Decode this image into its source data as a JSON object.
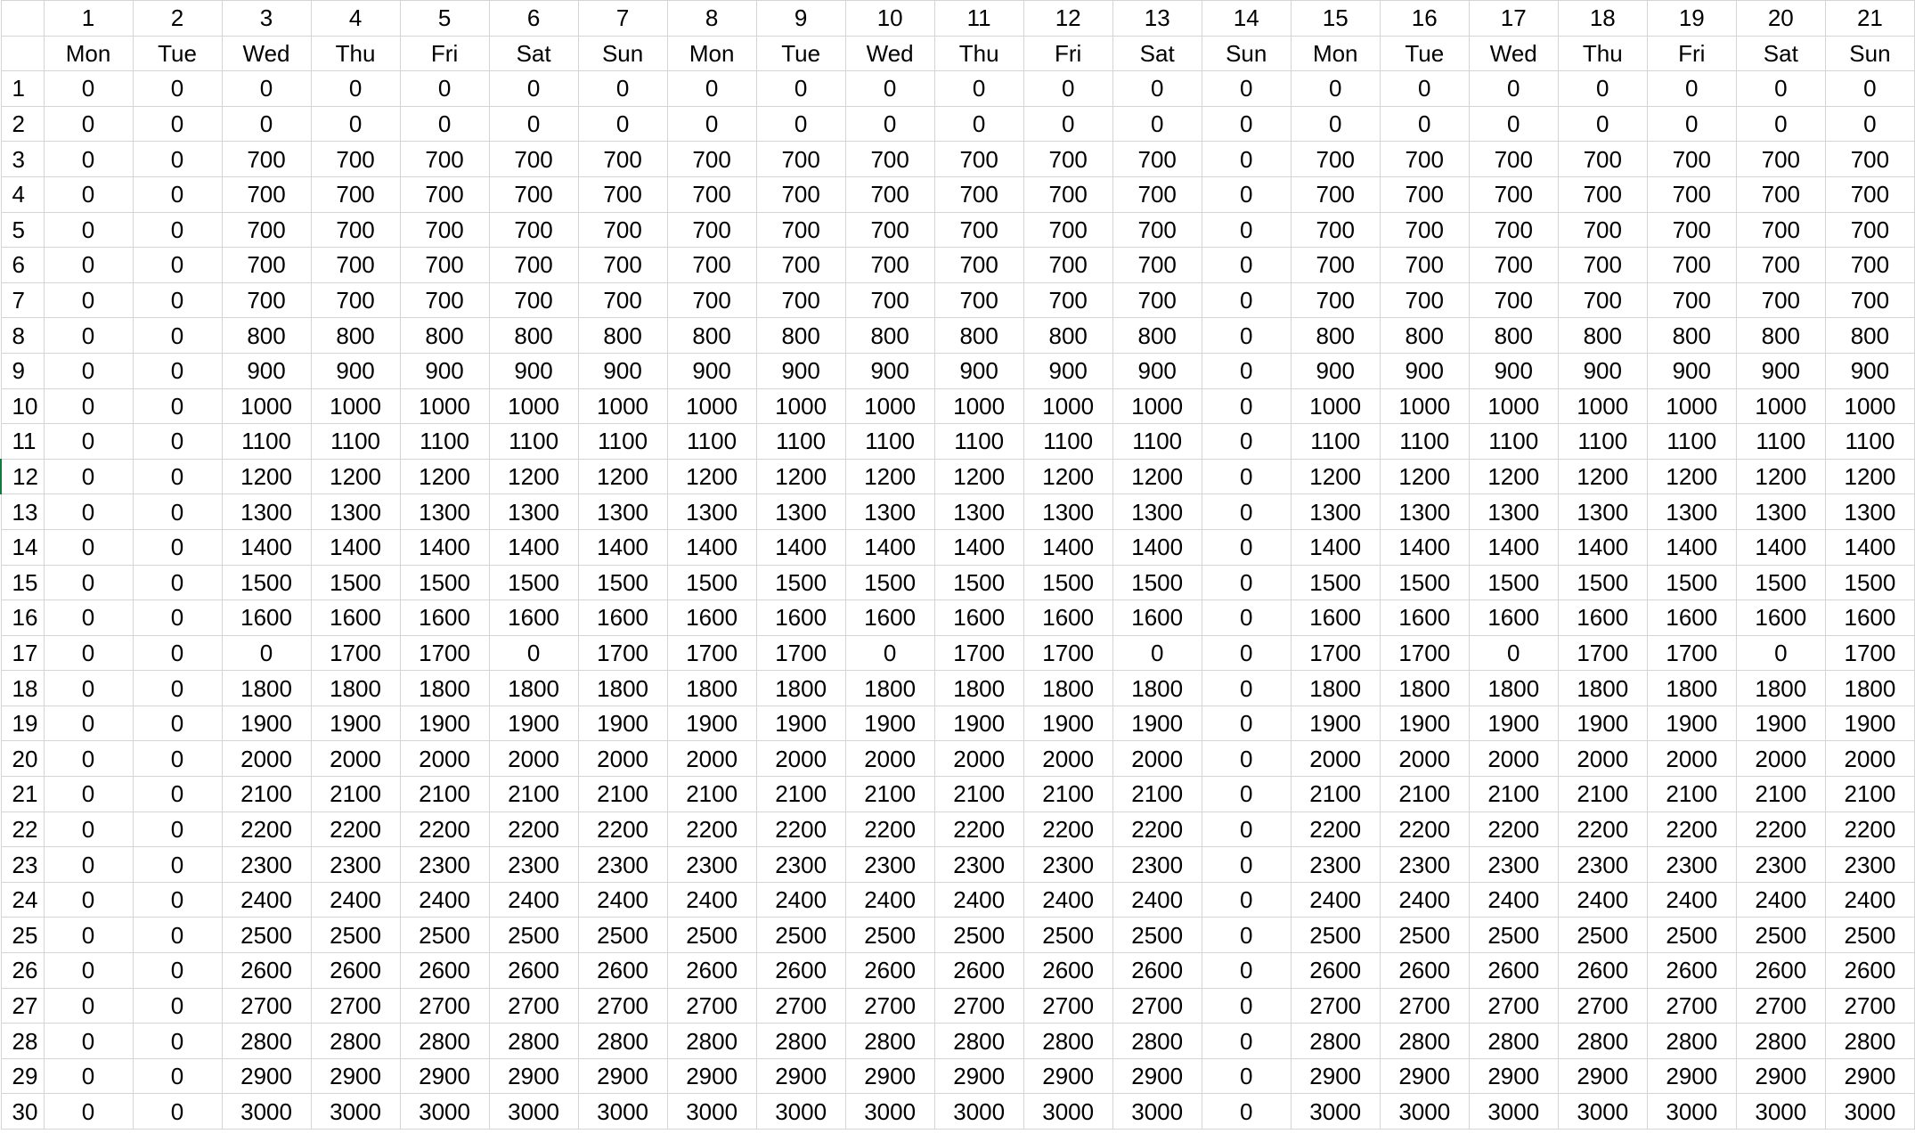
{
  "sheet": {
    "day_numbers": [
      "1",
      "2",
      "3",
      "4",
      "5",
      "6",
      "7",
      "8",
      "9",
      "10",
      "11",
      "12",
      "13",
      "14",
      "15",
      "16",
      "17",
      "18",
      "19",
      "20",
      "21"
    ],
    "weekdays": [
      "Mon",
      "Tue",
      "Wed",
      "Thu",
      "Fri",
      "Sat",
      "Sun",
      "Mon",
      "Tue",
      "Wed",
      "Thu",
      "Fri",
      "Sat",
      "Sun",
      "Mon",
      "Tue",
      "Wed",
      "Thu",
      "Fri",
      "Sat",
      "Sun"
    ],
    "rows": [
      {
        "label": "1",
        "values": [
          "0",
          "0",
          "0",
          "0",
          "0",
          "0",
          "0",
          "0",
          "0",
          "0",
          "0",
          "0",
          "0",
          "0",
          "0",
          "0",
          "0",
          "0",
          "0",
          "0",
          "0"
        ]
      },
      {
        "label": "2",
        "values": [
          "0",
          "0",
          "0",
          "0",
          "0",
          "0",
          "0",
          "0",
          "0",
          "0",
          "0",
          "0",
          "0",
          "0",
          "0",
          "0",
          "0",
          "0",
          "0",
          "0",
          "0"
        ]
      },
      {
        "label": "3",
        "values": [
          "0",
          "0",
          "700",
          "700",
          "700",
          "700",
          "700",
          "700",
          "700",
          "700",
          "700",
          "700",
          "700",
          "0",
          "700",
          "700",
          "700",
          "700",
          "700",
          "700",
          "700"
        ]
      },
      {
        "label": "4",
        "values": [
          "0",
          "0",
          "700",
          "700",
          "700",
          "700",
          "700",
          "700",
          "700",
          "700",
          "700",
          "700",
          "700",
          "0",
          "700",
          "700",
          "700",
          "700",
          "700",
          "700",
          "700"
        ]
      },
      {
        "label": "5",
        "values": [
          "0",
          "0",
          "700",
          "700",
          "700",
          "700",
          "700",
          "700",
          "700",
          "700",
          "700",
          "700",
          "700",
          "0",
          "700",
          "700",
          "700",
          "700",
          "700",
          "700",
          "700"
        ]
      },
      {
        "label": "6",
        "values": [
          "0",
          "0",
          "700",
          "700",
          "700",
          "700",
          "700",
          "700",
          "700",
          "700",
          "700",
          "700",
          "700",
          "0",
          "700",
          "700",
          "700",
          "700",
          "700",
          "700",
          "700"
        ]
      },
      {
        "label": "7",
        "values": [
          "0",
          "0",
          "700",
          "700",
          "700",
          "700",
          "700",
          "700",
          "700",
          "700",
          "700",
          "700",
          "700",
          "0",
          "700",
          "700",
          "700",
          "700",
          "700",
          "700",
          "700"
        ]
      },
      {
        "label": "8",
        "values": [
          "0",
          "0",
          "800",
          "800",
          "800",
          "800",
          "800",
          "800",
          "800",
          "800",
          "800",
          "800",
          "800",
          "0",
          "800",
          "800",
          "800",
          "800",
          "800",
          "800",
          "800"
        ]
      },
      {
        "label": "9",
        "values": [
          "0",
          "0",
          "900",
          "900",
          "900",
          "900",
          "900",
          "900",
          "900",
          "900",
          "900",
          "900",
          "900",
          "0",
          "900",
          "900",
          "900",
          "900",
          "900",
          "900",
          "900"
        ]
      },
      {
        "label": "10",
        "values": [
          "0",
          "0",
          "1000",
          "1000",
          "1000",
          "1000",
          "1000",
          "1000",
          "1000",
          "1000",
          "1000",
          "1000",
          "1000",
          "0",
          "1000",
          "1000",
          "1000",
          "1000",
          "1000",
          "1000",
          "1000"
        ]
      },
      {
        "label": "11",
        "values": [
          "0",
          "0",
          "1100",
          "1100",
          "1100",
          "1100",
          "1100",
          "1100",
          "1100",
          "1100",
          "1100",
          "1100",
          "1100",
          "0",
          "1100",
          "1100",
          "1100",
          "1100",
          "1100",
          "1100",
          "1100"
        ]
      },
      {
        "label": "12",
        "values": [
          "0",
          "0",
          "1200",
          "1200",
          "1200",
          "1200",
          "1200",
          "1200",
          "1200",
          "1200",
          "1200",
          "1200",
          "1200",
          "0",
          "1200",
          "1200",
          "1200",
          "1200",
          "1200",
          "1200",
          "1200"
        ]
      },
      {
        "label": "13",
        "values": [
          "0",
          "0",
          "1300",
          "1300",
          "1300",
          "1300",
          "1300",
          "1300",
          "1300",
          "1300",
          "1300",
          "1300",
          "1300",
          "0",
          "1300",
          "1300",
          "1300",
          "1300",
          "1300",
          "1300",
          "1300"
        ]
      },
      {
        "label": "14",
        "values": [
          "0",
          "0",
          "1400",
          "1400",
          "1400",
          "1400",
          "1400",
          "1400",
          "1400",
          "1400",
          "1400",
          "1400",
          "1400",
          "0",
          "1400",
          "1400",
          "1400",
          "1400",
          "1400",
          "1400",
          "1400"
        ]
      },
      {
        "label": "15",
        "values": [
          "0",
          "0",
          "1500",
          "1500",
          "1500",
          "1500",
          "1500",
          "1500",
          "1500",
          "1500",
          "1500",
          "1500",
          "1500",
          "0",
          "1500",
          "1500",
          "1500",
          "1500",
          "1500",
          "1500",
          "1500"
        ]
      },
      {
        "label": "16",
        "values": [
          "0",
          "0",
          "1600",
          "1600",
          "1600",
          "1600",
          "1600",
          "1600",
          "1600",
          "1600",
          "1600",
          "1600",
          "1600",
          "0",
          "1600",
          "1600",
          "1600",
          "1600",
          "1600",
          "1600",
          "1600"
        ]
      },
      {
        "label": "17",
        "values": [
          "0",
          "0",
          "0",
          "1700",
          "1700",
          "0",
          "1700",
          "1700",
          "1700",
          "0",
          "1700",
          "1700",
          "0",
          "0",
          "1700",
          "1700",
          "0",
          "1700",
          "1700",
          "0",
          "1700"
        ]
      },
      {
        "label": "18",
        "values": [
          "0",
          "0",
          "1800",
          "1800",
          "1800",
          "1800",
          "1800",
          "1800",
          "1800",
          "1800",
          "1800",
          "1800",
          "1800",
          "0",
          "1800",
          "1800",
          "1800",
          "1800",
          "1800",
          "1800",
          "1800"
        ]
      },
      {
        "label": "19",
        "values": [
          "0",
          "0",
          "1900",
          "1900",
          "1900",
          "1900",
          "1900",
          "1900",
          "1900",
          "1900",
          "1900",
          "1900",
          "1900",
          "0",
          "1900",
          "1900",
          "1900",
          "1900",
          "1900",
          "1900",
          "1900"
        ]
      },
      {
        "label": "20",
        "values": [
          "0",
          "0",
          "2000",
          "2000",
          "2000",
          "2000",
          "2000",
          "2000",
          "2000",
          "2000",
          "2000",
          "2000",
          "2000",
          "0",
          "2000",
          "2000",
          "2000",
          "2000",
          "2000",
          "2000",
          "2000"
        ]
      },
      {
        "label": "21",
        "values": [
          "0",
          "0",
          "2100",
          "2100",
          "2100",
          "2100",
          "2100",
          "2100",
          "2100",
          "2100",
          "2100",
          "2100",
          "2100",
          "0",
          "2100",
          "2100",
          "2100",
          "2100",
          "2100",
          "2100",
          "2100"
        ]
      },
      {
        "label": "22",
        "values": [
          "0",
          "0",
          "2200",
          "2200",
          "2200",
          "2200",
          "2200",
          "2200",
          "2200",
          "2200",
          "2200",
          "2200",
          "2200",
          "0",
          "2200",
          "2200",
          "2200",
          "2200",
          "2200",
          "2200",
          "2200"
        ]
      },
      {
        "label": "23",
        "values": [
          "0",
          "0",
          "2300",
          "2300",
          "2300",
          "2300",
          "2300",
          "2300",
          "2300",
          "2300",
          "2300",
          "2300",
          "2300",
          "0",
          "2300",
          "2300",
          "2300",
          "2300",
          "2300",
          "2300",
          "2300"
        ]
      },
      {
        "label": "24",
        "values": [
          "0",
          "0",
          "2400",
          "2400",
          "2400",
          "2400",
          "2400",
          "2400",
          "2400",
          "2400",
          "2400",
          "2400",
          "2400",
          "0",
          "2400",
          "2400",
          "2400",
          "2400",
          "2400",
          "2400",
          "2400"
        ]
      },
      {
        "label": "25",
        "values": [
          "0",
          "0",
          "2500",
          "2500",
          "2500",
          "2500",
          "2500",
          "2500",
          "2500",
          "2500",
          "2500",
          "2500",
          "2500",
          "0",
          "2500",
          "2500",
          "2500",
          "2500",
          "2500",
          "2500",
          "2500"
        ]
      },
      {
        "label": "26",
        "values": [
          "0",
          "0",
          "2600",
          "2600",
          "2600",
          "2600",
          "2600",
          "2600",
          "2600",
          "2600",
          "2600",
          "2600",
          "2600",
          "0",
          "2600",
          "2600",
          "2600",
          "2600",
          "2600",
          "2600",
          "2600"
        ]
      },
      {
        "label": "27",
        "values": [
          "0",
          "0",
          "2700",
          "2700",
          "2700",
          "2700",
          "2700",
          "2700",
          "2700",
          "2700",
          "2700",
          "2700",
          "2700",
          "0",
          "2700",
          "2700",
          "2700",
          "2700",
          "2700",
          "2700",
          "2700"
        ]
      },
      {
        "label": "28",
        "values": [
          "0",
          "0",
          "2800",
          "2800",
          "2800",
          "2800",
          "2800",
          "2800",
          "2800",
          "2800",
          "2800",
          "2800",
          "2800",
          "0",
          "2800",
          "2800",
          "2800",
          "2800",
          "2800",
          "2800",
          "2800"
        ]
      },
      {
        "label": "29",
        "values": [
          "0",
          "0",
          "2900",
          "2900",
          "2900",
          "2900",
          "2900",
          "2900",
          "2900",
          "2900",
          "2900",
          "2900",
          "2900",
          "0",
          "2900",
          "2900",
          "2900",
          "2900",
          "2900",
          "2900",
          "2900"
        ]
      },
      {
        "label": "30",
        "values": [
          "0",
          "0",
          "3000",
          "3000",
          "3000",
          "3000",
          "3000",
          "3000",
          "3000",
          "3000",
          "3000",
          "3000",
          "3000",
          "0",
          "3000",
          "3000",
          "3000",
          "3000",
          "3000",
          "3000",
          "3000"
        ]
      }
    ]
  },
  "colors": {
    "gridline": "#d4d4d4",
    "text": "#000000",
    "selection_accent": "#107c41"
  }
}
